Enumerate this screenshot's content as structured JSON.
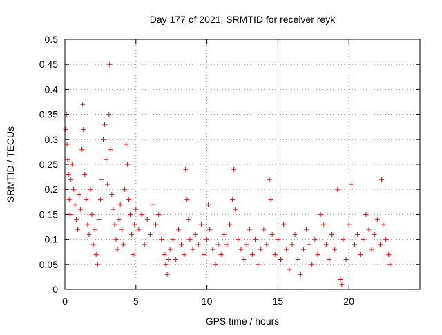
{
  "chart_data": {
    "type": "scatter",
    "title": "Day 177 of 2021, SRMTID for receiver reyk",
    "xlabel": "GPS time / hours",
    "ylabel": "SRMTID / TECUs",
    "xlim": [
      0,
      25
    ],
    "ylim": [
      0,
      0.5
    ],
    "x_ticks": [
      "0",
      "5",
      "10",
      "15",
      "20"
    ],
    "x_tick_values": [
      0,
      5,
      10,
      15,
      20
    ],
    "y_ticks": [
      "0",
      "0.05",
      "0.1",
      "0.15",
      "0.2",
      "0.25",
      "0.3",
      "0.35",
      "0.4",
      "0.45",
      "0.5"
    ],
    "y_tick_values": [
      0,
      0.05,
      0.1,
      0.15,
      0.2,
      0.25,
      0.3,
      0.35,
      0.4,
      0.45,
      0.5
    ],
    "grid": true,
    "marker": "plus",
    "series": [
      {
        "name": "SRMTID",
        "color": "#ff0000",
        "points": [
          [
            0.05,
            0.32
          ],
          [
            0.1,
            0.35
          ],
          [
            0.15,
            0.29
          ],
          [
            0.2,
            0.26
          ],
          [
            0.25,
            0.23
          ],
          [
            0.3,
            0.18
          ],
          [
            0.35,
            0.15
          ],
          [
            0.4,
            0.22
          ],
          [
            0.5,
            0.25
          ],
          [
            0.6,
            0.2
          ],
          [
            0.7,
            0.17
          ],
          [
            0.8,
            0.14
          ],
          [
            0.9,
            0.12
          ],
          [
            1.0,
            0.19
          ],
          [
            1.1,
            0.16
          ],
          [
            1.2,
            0.28
          ],
          [
            1.25,
            0.37
          ],
          [
            1.3,
            0.32
          ],
          [
            1.4,
            0.23
          ],
          [
            1.5,
            0.18
          ],
          [
            1.6,
            0.13
          ],
          [
            1.7,
            0.11
          ],
          [
            1.8,
            0.2
          ],
          [
            1.9,
            0.15
          ],
          [
            2.0,
            0.09
          ],
          [
            2.1,
            0.12
          ],
          [
            2.2,
            0.07
          ],
          [
            2.3,
            0.05
          ],
          [
            2.4,
            0.14
          ],
          [
            2.5,
            0.18
          ],
          [
            2.6,
            0.22
          ],
          [
            2.7,
            0.3
          ],
          [
            2.8,
            0.33
          ],
          [
            2.9,
            0.26
          ],
          [
            3.0,
            0.21
          ],
          [
            3.1,
            0.35
          ],
          [
            3.15,
            0.45
          ],
          [
            3.2,
            0.28
          ],
          [
            3.3,
            0.19
          ],
          [
            3.4,
            0.16
          ],
          [
            3.5,
            0.13
          ],
          [
            3.6,
            0.1
          ],
          [
            3.7,
            0.08
          ],
          [
            3.8,
            0.14
          ],
          [
            3.9,
            0.17
          ],
          [
            4.0,
            0.12
          ],
          [
            4.1,
            0.09
          ],
          [
            4.2,
            0.2
          ],
          [
            4.3,
            0.29
          ],
          [
            4.4,
            0.25
          ],
          [
            4.5,
            0.18
          ],
          [
            4.6,
            0.15
          ],
          [
            4.7,
            0.11
          ],
          [
            4.8,
            0.07
          ],
          [
            4.9,
            0.13
          ],
          [
            5.0,
            0.16
          ],
          [
            5.2,
            0.12
          ],
          [
            5.4,
            0.15
          ],
          [
            5.6,
            0.09
          ],
          [
            5.8,
            0.14
          ],
          [
            6.0,
            0.11
          ],
          [
            6.2,
            0.17
          ],
          [
            6.4,
            0.13
          ],
          [
            6.6,
            0.15
          ],
          [
            6.8,
            0.1
          ],
          [
            7.0,
            0.07
          ],
          [
            7.1,
            0.05
          ],
          [
            7.2,
            0.03
          ],
          [
            7.3,
            0.06
          ],
          [
            7.4,
            0.08
          ],
          [
            7.6,
            0.1
          ],
          [
            7.8,
            0.06
          ],
          [
            8.0,
            0.12
          ],
          [
            8.2,
            0.09
          ],
          [
            8.4,
            0.07
          ],
          [
            8.5,
            0.24
          ],
          [
            8.6,
            0.18
          ],
          [
            8.7,
            0.14
          ],
          [
            8.8,
            0.1
          ],
          [
            9.0,
            0.08
          ],
          [
            9.2,
            0.11
          ],
          [
            9.4,
            0.09
          ],
          [
            9.6,
            0.13
          ],
          [
            9.8,
            0.07
          ],
          [
            10.0,
            0.1
          ],
          [
            10.1,
            0.17
          ],
          [
            10.2,
            0.12
          ],
          [
            10.4,
            0.08
          ],
          [
            10.6,
            0.05
          ],
          [
            10.8,
            0.09
          ],
          [
            11.0,
            0.07
          ],
          [
            11.2,
            0.11
          ],
          [
            11.4,
            0.09
          ],
          [
            11.6,
            0.13
          ],
          [
            11.8,
            0.18
          ],
          [
            11.9,
            0.24
          ],
          [
            12.0,
            0.16
          ],
          [
            12.2,
            0.1
          ],
          [
            12.4,
            0.08
          ],
          [
            12.6,
            0.06
          ],
          [
            12.8,
            0.09
          ],
          [
            13.0,
            0.12
          ],
          [
            13.2,
            0.07
          ],
          [
            13.4,
            0.1
          ],
          [
            13.6,
            0.05
          ],
          [
            13.8,
            0.08
          ],
          [
            14.0,
            0.12
          ],
          [
            14.2,
            0.09
          ],
          [
            14.4,
            0.22
          ],
          [
            14.5,
            0.18
          ],
          [
            14.6,
            0.11
          ],
          [
            14.8,
            0.07
          ],
          [
            15.0,
            0.1
          ],
          [
            15.2,
            0.06
          ],
          [
            15.4,
            0.13
          ],
          [
            15.6,
            0.08
          ],
          [
            15.8,
            0.04
          ],
          [
            16.0,
            0.09
          ],
          [
            16.2,
            0.11
          ],
          [
            16.4,
            0.06
          ],
          [
            16.6,
            0.03
          ],
          [
            16.8,
            0.08
          ],
          [
            17.0,
            0.12
          ],
          [
            17.2,
            0.09
          ],
          [
            17.4,
            0.05
          ],
          [
            17.6,
            0.1
          ],
          [
            17.8,
            0.07
          ],
          [
            18.0,
            0.15
          ],
          [
            18.2,
            0.13
          ],
          [
            18.4,
            0.09
          ],
          [
            18.6,
            0.06
          ],
          [
            18.8,
            0.11
          ],
          [
            19.0,
            0.08
          ],
          [
            19.2,
            0.2
          ],
          [
            19.4,
            0.02
          ],
          [
            19.5,
            0.01
          ],
          [
            19.6,
            0.1
          ],
          [
            19.8,
            0.06
          ],
          [
            20.0,
            0.13
          ],
          [
            20.2,
            0.21
          ],
          [
            20.4,
            0.09
          ],
          [
            20.6,
            0.11
          ],
          [
            20.8,
            0.07
          ],
          [
            21.0,
            0.1
          ],
          [
            21.2,
            0.15
          ],
          [
            21.4,
            0.12
          ],
          [
            21.6,
            0.08
          ],
          [
            21.8,
            0.11
          ],
          [
            22.0,
            0.14
          ],
          [
            22.2,
            0.09
          ],
          [
            22.3,
            0.22
          ],
          [
            22.4,
            0.13
          ],
          [
            22.6,
            0.1
          ],
          [
            22.8,
            0.07
          ],
          [
            22.9,
            0.05
          ]
        ]
      }
    ]
  }
}
